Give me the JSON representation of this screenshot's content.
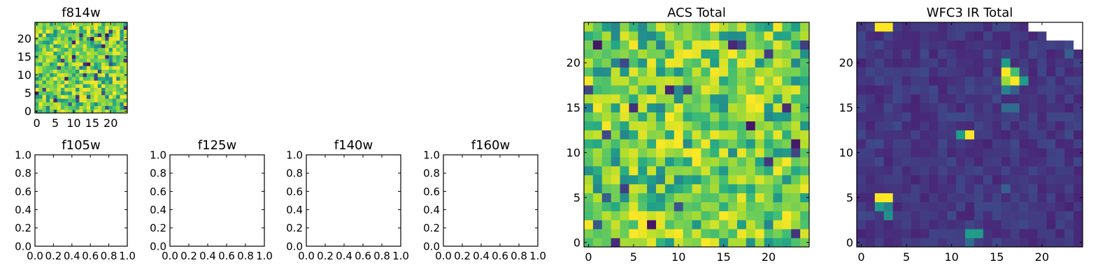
{
  "chart_data": [
    {
      "type": "heatmap",
      "title": "f814w",
      "colormap": "viridis",
      "grid_size": [
        25,
        25
      ],
      "xticks": [
        "0",
        "5",
        "10",
        "15",
        "20"
      ],
      "yticks": [
        "0",
        "5",
        "10",
        "15",
        "20"
      ],
      "xlim": [
        -0.5,
        24.5
      ],
      "ylim": [
        -0.5,
        24.5
      ],
      "value_range": [
        0,
        1
      ]
    },
    {
      "type": "heatmap",
      "title": "f105w",
      "empty": true,
      "xticks": [
        "0.0",
        "0.2",
        "0.4",
        "0.6",
        "0.8",
        "1.0"
      ],
      "yticks": [
        "0.0",
        "0.2",
        "0.4",
        "0.6",
        "0.8",
        "1.0"
      ],
      "xlim": [
        0,
        1
      ],
      "ylim": [
        0,
        1
      ]
    },
    {
      "type": "heatmap",
      "title": "f125w",
      "empty": true,
      "xticks": [
        "0.0",
        "0.2",
        "0.4",
        "0.6",
        "0.8",
        "1.0"
      ],
      "yticks": [
        "0.0",
        "0.2",
        "0.4",
        "0.6",
        "0.8",
        "1.0"
      ],
      "xlim": [
        0,
        1
      ],
      "ylim": [
        0,
        1
      ]
    },
    {
      "type": "heatmap",
      "title": "f140w",
      "empty": true,
      "xticks": [
        "0.0",
        "0.2",
        "0.4",
        "0.6",
        "0.8",
        "1.0"
      ],
      "yticks": [
        "0.0",
        "0.2",
        "0.4",
        "0.6",
        "0.8",
        "1.0"
      ],
      "xlim": [
        0,
        1
      ],
      "ylim": [
        0,
        1
      ]
    },
    {
      "type": "heatmap",
      "title": "f160w",
      "empty": true,
      "xticks": [
        "0.0",
        "0.2",
        "0.4",
        "0.6",
        "0.8",
        "1.0"
      ],
      "yticks": [
        "0.0",
        "0.2",
        "0.4",
        "0.6",
        "0.8",
        "1.0"
      ],
      "xlim": [
        0,
        1
      ],
      "ylim": [
        0,
        1
      ]
    },
    {
      "type": "heatmap",
      "title": "ACS Total",
      "colormap": "viridis",
      "grid_size": [
        25,
        25
      ],
      "xticks": [
        "0",
        "5",
        "10",
        "15",
        "20"
      ],
      "yticks": [
        "0",
        "5",
        "10",
        "15",
        "20"
      ],
      "xlim": [
        -0.5,
        24.5
      ],
      "ylim": [
        -0.5,
        24.5
      ],
      "value_range": [
        0,
        1
      ]
    },
    {
      "type": "heatmap",
      "title": "WFC3 IR Total",
      "colormap": "viridis",
      "grid_size": [
        25,
        25
      ],
      "xticks": [
        "0",
        "5",
        "10",
        "15",
        "20"
      ],
      "yticks": [
        "0",
        "5",
        "10",
        "15",
        "20"
      ],
      "xlim": [
        -0.5,
        24.5
      ],
      "ylim": [
        -0.5,
        24.5
      ],
      "value_range": [
        0,
        1
      ],
      "background_level": 0.1,
      "bright_spots": [
        {
          "x": 2,
          "y": 24,
          "value": 1.0
        },
        {
          "x": 3,
          "y": 24,
          "value": 1.0
        },
        {
          "x": 16,
          "y": 19,
          "value": 1.0
        },
        {
          "x": 17,
          "y": 19,
          "value": 0.7
        },
        {
          "x": 16,
          "y": 18,
          "value": 0.85
        },
        {
          "x": 17,
          "y": 18,
          "value": 1.0
        },
        {
          "x": 16,
          "y": 17,
          "value": 0.45
        },
        {
          "x": 17,
          "y": 17,
          "value": 0.3
        },
        {
          "x": 18,
          "y": 18,
          "value": 0.55
        },
        {
          "x": 16,
          "y": 20,
          "value": 0.55
        },
        {
          "x": 16,
          "y": 15,
          "value": 0.35
        },
        {
          "x": 17,
          "y": 15,
          "value": 0.35
        },
        {
          "x": 11,
          "y": 12,
          "value": 0.55
        },
        {
          "x": 12,
          "y": 12,
          "value": 1.0
        },
        {
          "x": 2,
          "y": 5,
          "value": 1.0
        },
        {
          "x": 3,
          "y": 5,
          "value": 1.0
        },
        {
          "x": 2,
          "y": 4,
          "value": 0.55
        },
        {
          "x": 3,
          "y": 4,
          "value": 0.45
        },
        {
          "x": 3,
          "y": 3,
          "value": 0.5
        },
        {
          "x": 12,
          "y": 1,
          "value": 0.55
        },
        {
          "x": 13,
          "y": 1,
          "value": 0.55
        },
        {
          "x": 12,
          "y": 0,
          "value": 0.35
        },
        {
          "x": 16,
          "y": 6,
          "value": 0.3
        },
        {
          "x": 23,
          "y": 21,
          "value": 0.3
        }
      ],
      "masked_cells": [
        {
          "x": 19,
          "y": 24
        },
        {
          "x": 20,
          "y": 24
        },
        {
          "x": 21,
          "y": 24
        },
        {
          "x": 22,
          "y": 24
        },
        {
          "x": 23,
          "y": 24
        },
        {
          "x": 24,
          "y": 24
        },
        {
          "x": 21,
          "y": 23
        },
        {
          "x": 22,
          "y": 23
        },
        {
          "x": 23,
          "y": 23
        },
        {
          "x": 24,
          "y": 23
        },
        {
          "x": 24,
          "y": 22
        }
      ]
    }
  ]
}
